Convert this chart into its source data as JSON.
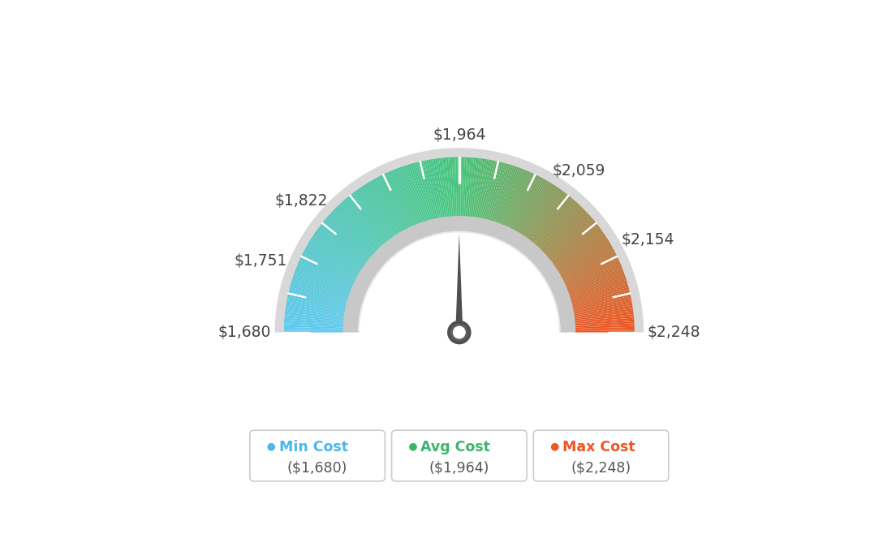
{
  "min_val": 1680,
  "avg_val": 1964,
  "max_val": 2248,
  "legend_items": [
    {
      "label": "Min Cost",
      "sublabel": "($1,680)",
      "color": "#4ab8e8"
    },
    {
      "label": "Avg Cost",
      "sublabel": "($1,964)",
      "color": "#3cb56a"
    },
    {
      "label": "Max Cost",
      "sublabel": "($2,248)",
      "color": "#f05522"
    }
  ],
  "label_values": [
    1680,
    1751,
    1822,
    1964,
    2059,
    2154,
    2248
  ],
  "bg_color": "#ffffff",
  "color_left": "#5ec8f0",
  "color_mid": "#45c47a",
  "color_right": "#f05522",
  "outer_r": 0.76,
  "inner_r": 0.5,
  "rim_outer": 0.8,
  "rim_inner": 0.755,
  "inner_arc_outer": 0.505,
  "inner_arc_inner": 0.435
}
